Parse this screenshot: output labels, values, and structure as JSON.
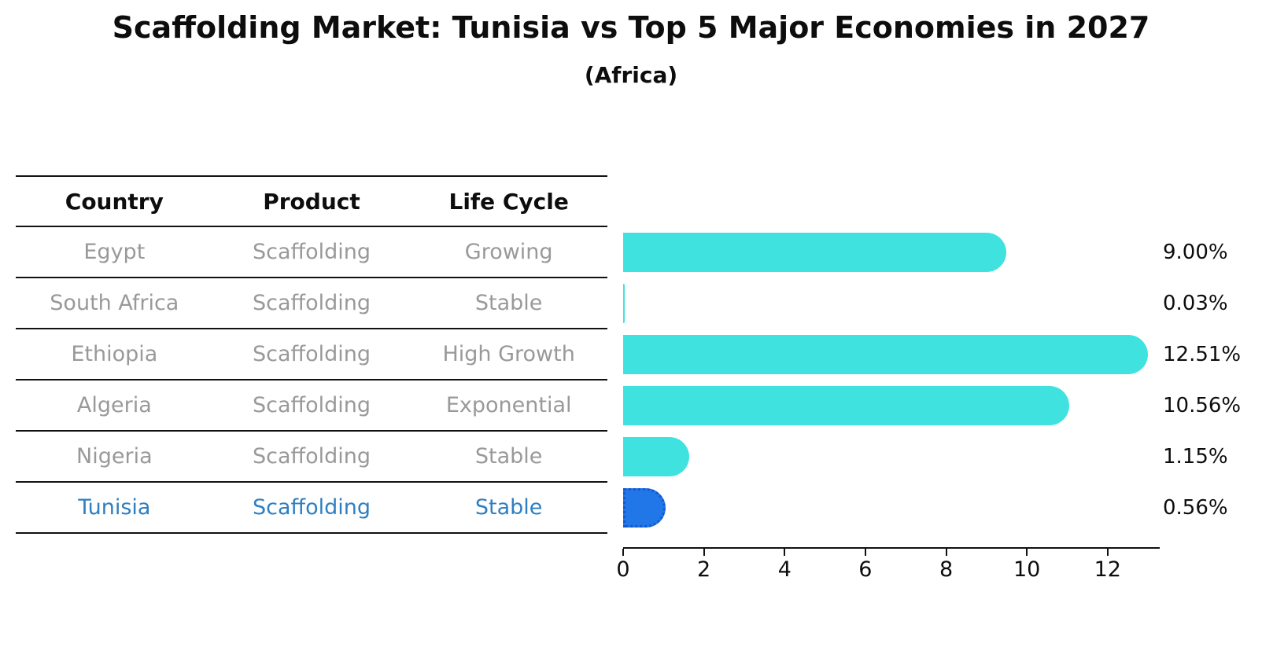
{
  "title": "Scaffolding Market: Tunisia vs Top 5 Major Economies in 2027",
  "subtitle": "(Africa)",
  "table": {
    "headers": [
      "Country",
      "Product",
      "Life Cycle"
    ],
    "rows": [
      {
        "country": "Egypt",
        "product": "Scaffolding",
        "life_cycle": "Growing",
        "highlight": false
      },
      {
        "country": "South Africa",
        "product": "Scaffolding",
        "life_cycle": "Stable",
        "highlight": false
      },
      {
        "country": "Ethiopia",
        "product": "Scaffolding",
        "life_cycle": "High Growth",
        "highlight": false
      },
      {
        "country": "Algeria",
        "product": "Scaffolding",
        "life_cycle": "Exponential",
        "highlight": false
      },
      {
        "country": "Nigeria",
        "product": "Scaffolding",
        "life_cycle": "Stable",
        "highlight": false
      },
      {
        "country": "Tunisia",
        "product": "Scaffolding",
        "life_cycle": "Stable",
        "highlight": true
      }
    ]
  },
  "chart_data": {
    "type": "bar",
    "orientation": "horizontal",
    "title": "Scaffolding Market: Tunisia vs Top 5 Major Economies in 2027",
    "subtitle": "(Africa)",
    "categories": [
      "Egypt",
      "South Africa",
      "Ethiopia",
      "Algeria",
      "Nigeria",
      "Tunisia"
    ],
    "values": [
      9.0,
      0.03,
      12.51,
      10.56,
      1.15,
      0.56
    ],
    "value_labels": [
      "9.00%",
      "0.03%",
      "12.51%",
      "10.56%",
      "1.15%",
      "0.56%"
    ],
    "xticks": [
      0,
      2,
      4,
      6,
      8,
      10,
      12
    ],
    "xtick_labels": [
      "0",
      "2",
      "4",
      "6",
      "8",
      "10",
      "12"
    ],
    "xlim": [
      0,
      13.25
    ],
    "grid": false,
    "legend_position": "none",
    "highlight_index": 5
  },
  "colors": {
    "bar": "#40e2e0",
    "highlight_bar": "#2176e8",
    "highlight_border": "#1258cf",
    "highlight_text": "#2e7fc2",
    "row_text": "#999999",
    "heading_text": "#0d0d0d",
    "line": "#111111"
  }
}
